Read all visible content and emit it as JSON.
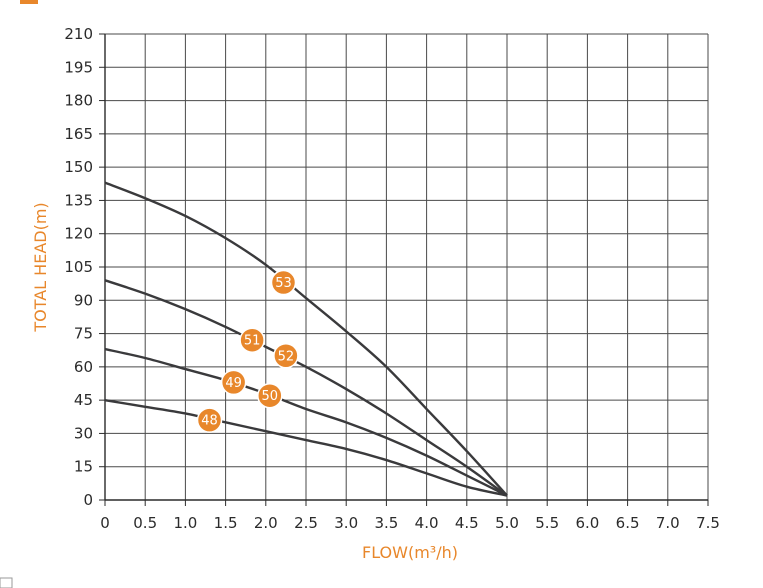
{
  "colors": {
    "accent": "#E8872B",
    "curve": "#3A3A3C",
    "grid": "#4A4A4A",
    "text": "#2B2B2B"
  },
  "chart_data": {
    "type": "line",
    "title": "",
    "xlabel": "FLOW(m³/h)",
    "ylabel": "TOTAL HEAD(m)",
    "xlim": [
      0,
      7.5
    ],
    "ylim": [
      0,
      210
    ],
    "x_ticks": [
      "0",
      "0.5",
      "1.0",
      "1.5",
      "2.0",
      "2.5",
      "3.0",
      "3.5",
      "4.0",
      "4.5",
      "5.0",
      "5.5",
      "6.0",
      "6.5",
      "7.0",
      "7.5"
    ],
    "y_ticks": [
      "0",
      "15",
      "30",
      "45",
      "60",
      "75",
      "90",
      "105",
      "120",
      "135",
      "150",
      "165",
      "180",
      "195",
      "210"
    ],
    "x_tick_values": [
      0,
      0.5,
      1.0,
      1.5,
      2.0,
      2.5,
      3.0,
      3.5,
      4.0,
      4.5,
      5.0,
      5.5,
      6.0,
      6.5,
      7.0,
      7.5
    ],
    "y_tick_values": [
      0,
      15,
      30,
      45,
      60,
      75,
      90,
      105,
      120,
      135,
      150,
      165,
      180,
      195,
      210
    ],
    "grid": true,
    "legend": "none",
    "series": [
      {
        "name": "48",
        "label_at": [
          1.3,
          36
        ],
        "x": [
          0,
          0.5,
          1.0,
          1.5,
          2.0,
          2.5,
          3.0,
          3.5,
          4.0,
          4.5,
          5.0
        ],
        "y": [
          45,
          42,
          39,
          35,
          31,
          27,
          23,
          18,
          12,
          6,
          2
        ]
      },
      {
        "name": "49",
        "label_at": [
          1.6,
          53
        ],
        "x": [
          0,
          0.5,
          1.0,
          1.5,
          2.0,
          2.5,
          3.0,
          3.5,
          4.0,
          4.5,
          5.0
        ],
        "y": [
          68,
          64,
          59,
          54,
          48,
          41,
          35,
          28,
          20,
          11,
          2
        ]
      },
      {
        "name": "50",
        "label_at": [
          2.05,
          47
        ],
        "x": [],
        "y": []
      },
      {
        "name": "51",
        "label_at": [
          1.83,
          72
        ],
        "x": [
          0,
          0.5,
          1.0,
          1.5,
          2.0,
          2.5,
          3.0,
          3.5,
          4.0,
          4.5,
          5.0
        ],
        "y": [
          99,
          93,
          86,
          78,
          69,
          60,
          50,
          39,
          27,
          15,
          2
        ]
      },
      {
        "name": "52",
        "label_at": [
          2.25,
          65
        ],
        "x": [],
        "y": []
      },
      {
        "name": "53",
        "label_at": [
          2.22,
          98
        ],
        "x": [
          0,
          0.5,
          1.0,
          1.5,
          2.0,
          2.5,
          3.0,
          3.5,
          4.0,
          4.5,
          5.0
        ],
        "y": [
          143,
          136,
          128,
          118,
          106,
          91,
          76,
          60,
          41,
          22,
          2
        ]
      }
    ]
  }
}
